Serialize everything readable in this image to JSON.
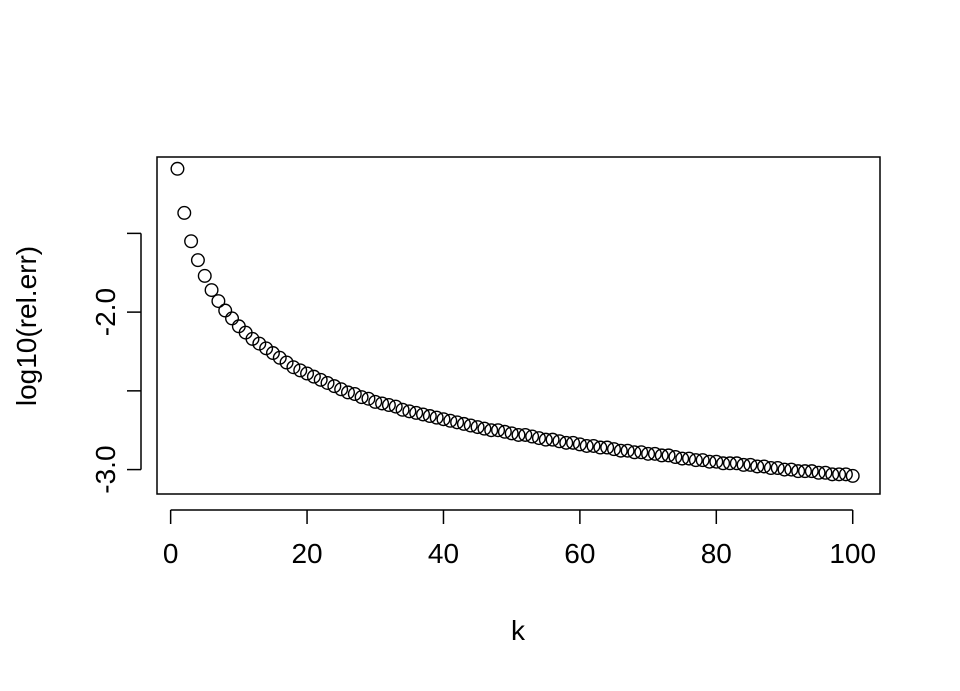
{
  "chart_data": {
    "type": "scatter",
    "title": "",
    "xlabel": "k",
    "ylabel": "log10(rel.err)",
    "xlim": [
      -2,
      104
    ],
    "ylim": [
      -3.155,
      -1.015
    ],
    "x_ticks": [
      0,
      20,
      40,
      60,
      80,
      100
    ],
    "x_tick_labels": [
      "0",
      "20",
      "40",
      "60",
      "80",
      "100"
    ],
    "y_ticks": [
      -3.0,
      -2.5,
      -2.0,
      -1.5
    ],
    "y_tick_labels": [
      "-3.0",
      "",
      "-2.0",
      ""
    ],
    "marker": "open-circle",
    "grid": false,
    "series": [
      {
        "x": [
          1,
          2,
          3,
          4,
          5,
          6,
          7,
          8,
          9,
          10,
          11,
          12,
          13,
          14,
          15,
          16,
          17,
          18,
          19,
          20,
          21,
          22,
          23,
          24,
          25,
          26,
          27,
          28,
          29,
          30,
          31,
          32,
          33,
          34,
          35,
          36,
          37,
          38,
          39,
          40,
          41,
          42,
          43,
          44,
          45,
          46,
          47,
          48,
          49,
          50,
          51,
          52,
          53,
          54,
          55,
          56,
          57,
          58,
          59,
          60,
          61,
          62,
          63,
          64,
          65,
          66,
          67,
          68,
          69,
          70,
          71,
          72,
          73,
          74,
          75,
          76,
          77,
          78,
          79,
          80,
          81,
          82,
          83,
          84,
          85,
          86,
          87,
          88,
          89,
          90,
          91,
          92,
          93,
          94,
          95,
          96,
          97,
          98,
          99,
          100
        ],
        "y": [
          -1.09,
          -1.37,
          -1.55,
          -1.67,
          -1.77,
          -1.86,
          -1.93,
          -1.99,
          -2.04,
          -2.09,
          -2.13,
          -2.17,
          -2.2,
          -2.23,
          -2.26,
          -2.29,
          -2.32,
          -2.35,
          -2.37,
          -2.39,
          -2.41,
          -2.43,
          -2.45,
          -2.47,
          -2.49,
          -2.51,
          -2.52,
          -2.54,
          -2.55,
          -2.57,
          -2.58,
          -2.59,
          -2.6,
          -2.62,
          -2.63,
          -2.64,
          -2.65,
          -2.66,
          -2.67,
          -2.68,
          -2.69,
          -2.7,
          -2.71,
          -2.72,
          -2.73,
          -2.74,
          -2.75,
          -2.75,
          -2.76,
          -2.77,
          -2.78,
          -2.78,
          -2.79,
          -2.8,
          -2.81,
          -2.81,
          -2.82,
          -2.83,
          -2.83,
          -2.84,
          -2.85,
          -2.85,
          -2.86,
          -2.86,
          -2.87,
          -2.88,
          -2.88,
          -2.89,
          -2.89,
          -2.9,
          -2.9,
          -2.91,
          -2.91,
          -2.92,
          -2.93,
          -2.93,
          -2.94,
          -2.94,
          -2.95,
          -2.95,
          -2.96,
          -2.96,
          -2.96,
          -2.97,
          -2.97,
          -2.98,
          -2.98,
          -2.99,
          -2.99,
          -3.0,
          -3.0,
          -3.01,
          -3.01,
          -3.01,
          -3.02,
          -3.02,
          -3.03,
          -3.03,
          -3.03,
          -3.04
        ]
      }
    ]
  }
}
